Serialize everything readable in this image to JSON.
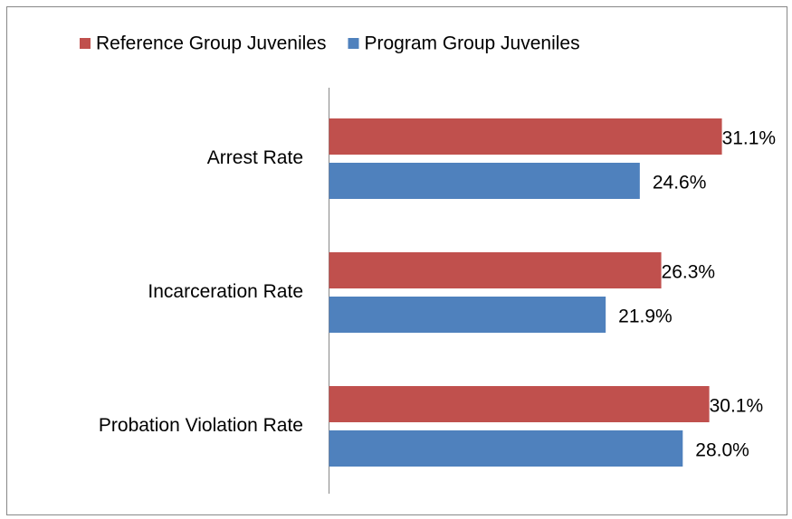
{
  "chart_data": {
    "type": "hbar",
    "categories": [
      "Arrest Rate",
      "Incarceration Rate",
      "Probation Violation Rate"
    ],
    "series": [
      {
        "name": "Reference Group Juveniles",
        "color": "#c0504d",
        "values": [
          31.1,
          26.3,
          30.1
        ],
        "value_labels": [
          "31.1%",
          "26.3%",
          "30.1%"
        ]
      },
      {
        "name": "Program Group Juveniles",
        "color": "#4f81bd",
        "values": [
          24.6,
          21.9,
          28.0
        ],
        "value_labels": [
          "24.6%",
          "21.9%",
          "28.0%"
        ]
      }
    ],
    "xlim": [
      0,
      35
    ],
    "legend": "top"
  }
}
